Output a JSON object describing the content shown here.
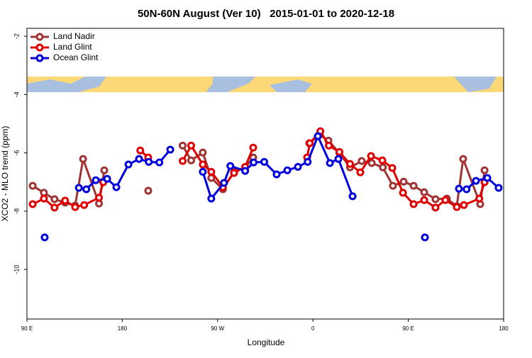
{
  "chart_data": {
    "type": "line",
    "title": "50N-60N August (Ver 10)   2015-01-01 to 2020-12-18",
    "x_label": "Longitude",
    "y_label": "XCO2 - MLO trend (ppm)",
    "xlim": [
      90,
      540
    ],
    "xticks": [
      {
        "value": 90,
        "label": "90 E"
      },
      180,
      {
        "value": 270,
        "label": "90 W"
      },
      {
        "value": 360,
        "label": "0"
      },
      {
        "value": 450,
        "label": "90 E"
      },
      {
        "value": 540,
        "label": "180"
      }
    ],
    "ylim": [
      -11.7,
      -1.73
    ],
    "yticks": [
      -2,
      -4,
      -6,
      -8,
      -10
    ],
    "legend": "top-left",
    "series": [
      {
        "name": "Land Nadir",
        "color": "#a03232",
        "x": [
          95.4,
          106,
          116,
          126,
          135.5,
          143,
          158,
          163,
          null,
          204.5,
          null,
          237,
          245,
          256,
          264,
          275,
          285.5,
          296,
          303.6,
          null,
          356.5,
          366.5,
          374.6,
          385,
          395,
          406,
          415.5,
          426,
          435.5,
          445.6,
          455,
          465,
          475.7,
          486.4,
          495.8,
          501.8,
          517.9,
          522
        ],
        "values": [
          -7.13,
          -7.37,
          -7.59,
          -7.71,
          -7.81,
          -6.21,
          -7.74,
          -6.6,
          null,
          -7.3,
          null,
          -5.75,
          -6.26,
          -5.99,
          -6.86,
          -7.25,
          -6.65,
          -6.5,
          -6.16,
          null,
          -5.67,
          -5.38,
          -5.58,
          -6.01,
          -6.5,
          -6.28,
          -6.35,
          -6.5,
          -7.13,
          -6.99,
          -7.13,
          -7.35,
          -7.59,
          -7.57,
          -7.83,
          -6.21,
          -7.76,
          -6.6
        ]
      },
      {
        "name": "Land Glint",
        "color": "#e00000",
        "x": [
          95.4,
          106,
          116,
          126,
          135.5,
          144,
          158,
          162,
          null,
          197,
          204.5,
          null,
          237,
          245,
          256,
          264,
          275,
          285.5,
          296,
          303.6,
          null,
          354.5,
          357,
          367,
          375,
          385,
          395,
          404.7,
          414.8,
          425.5,
          434.9,
          445,
          455,
          465,
          475.7,
          485,
          495.8,
          502.5,
          517,
          522
        ],
        "values": [
          -7.76,
          -7.57,
          -7.88,
          -7.64,
          -7.86,
          -7.79,
          -7.54,
          -7.01,
          null,
          -5.92,
          -6.16,
          null,
          -6.28,
          -5.75,
          -6.4,
          -6.65,
          -7.18,
          -6.69,
          -6.48,
          -5.82,
          null,
          -6.16,
          -5.67,
          -5.26,
          -5.75,
          -5.97,
          -6.38,
          -6.67,
          -6.11,
          -6.26,
          -6.52,
          -7.37,
          -7.76,
          -7.62,
          -7.88,
          -7.62,
          -7.86,
          -7.79,
          -7.57,
          -7.01
        ]
      },
      {
        "name": "Ocean Glint",
        "color": "#0000dd",
        "x": [
          106.7,
          null,
          139,
          146,
          155,
          165.7,
          174.4,
          185.8,
          195.8,
          205,
          215,
          225.3,
          null,
          256,
          264,
          276,
          282,
          296,
          304,
          314,
          325.7,
          335.8,
          345.8,
          355,
          364.6,
          376,
          384,
          397.4,
          null,
          465.7,
          null,
          497.8,
          505,
          513.9,
          524.6,
          535.3
        ],
        "values": [
          -8.9,
          null,
          -7.2,
          -7.25,
          -6.94,
          -6.89,
          -7.18,
          -6.4,
          -6.21,
          -6.31,
          -6.33,
          -5.89,
          null,
          -6.65,
          -7.57,
          -7.03,
          -6.45,
          -6.62,
          -6.33,
          -6.31,
          -6.74,
          -6.6,
          -6.48,
          -6.31,
          -5.43,
          -6.35,
          -6.21,
          -7.49,
          null,
          -8.9,
          null,
          -7.23,
          -7.25,
          -6.96,
          -6.86,
          -7.2
        ]
      }
    ]
  }
}
